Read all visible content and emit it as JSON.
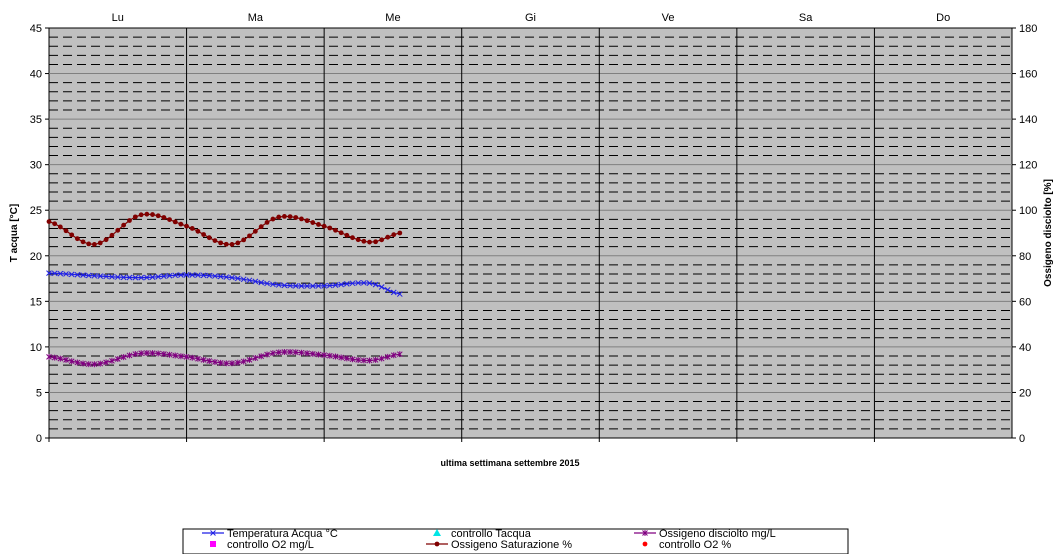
{
  "chart_data": {
    "type": "line",
    "title": "",
    "xlabel": "ultima settimana settembre  2015",
    "ylabel": "T acqua [°C]",
    "y2label": "Ossigeno disciolto [%]",
    "days": [
      "Lu",
      "Ma",
      "Me",
      "Gi",
      "Ve",
      "Sa",
      "Do"
    ],
    "x_range": [
      0,
      7
    ],
    "ylim": [
      0,
      45
    ],
    "yticks": [
      0,
      5,
      10,
      15,
      20,
      25,
      30,
      35,
      40,
      45
    ],
    "y2lim": [
      0,
      180
    ],
    "y2ticks": [
      0,
      20,
      40,
      60,
      80,
      100,
      120,
      140,
      160,
      180
    ],
    "grid": true,
    "background_color": "#c0c0c0",
    "legend_position": "bottom",
    "series": [
      {
        "name": "Temperatura Acqua °C",
        "color": "#1f1fe6",
        "marker": "x",
        "axis": "left",
        "x": [
          0,
          0.33,
          0.67,
          1.0,
          1.33,
          1.67,
          2.0,
          2.33,
          2.55
        ],
        "values": [
          18.1,
          17.8,
          17.6,
          17.9,
          17.6,
          16.8,
          16.7,
          17.0,
          15.8
        ]
      },
      {
        "name": "controllo Tacqua",
        "color": "#00e5e5",
        "marker": "triangle",
        "axis": "left",
        "x": [],
        "values": []
      },
      {
        "name": "Ossigeno disciolto mg/L",
        "color": "#800080",
        "marker": "star",
        "axis": "left",
        "x": [
          0,
          0.33,
          0.67,
          1.0,
          1.33,
          1.67,
          2.0,
          2.33,
          2.55
        ],
        "values": [
          8.9,
          8.1,
          9.3,
          8.9,
          8.2,
          9.4,
          9.1,
          8.5,
          9.2
        ]
      },
      {
        "name": "controllo O2 mg/L",
        "color": "#ff00ff",
        "marker": "square",
        "axis": "left",
        "x": [],
        "values": []
      },
      {
        "name": "Ossigeno Saturazione %",
        "color": "#800000",
        "marker": "dot",
        "axis": "right",
        "x": [
          0,
          0.33,
          0.67,
          1.0,
          1.33,
          1.67,
          2.0,
          2.33,
          2.55
        ],
        "values": [
          95,
          85,
          98,
          93,
          85,
          97,
          93,
          86,
          90
        ]
      },
      {
        "name": "controllo O2 %",
        "color": "#ff0000",
        "marker": "dot",
        "axis": "right",
        "x": [],
        "values": []
      }
    ]
  }
}
